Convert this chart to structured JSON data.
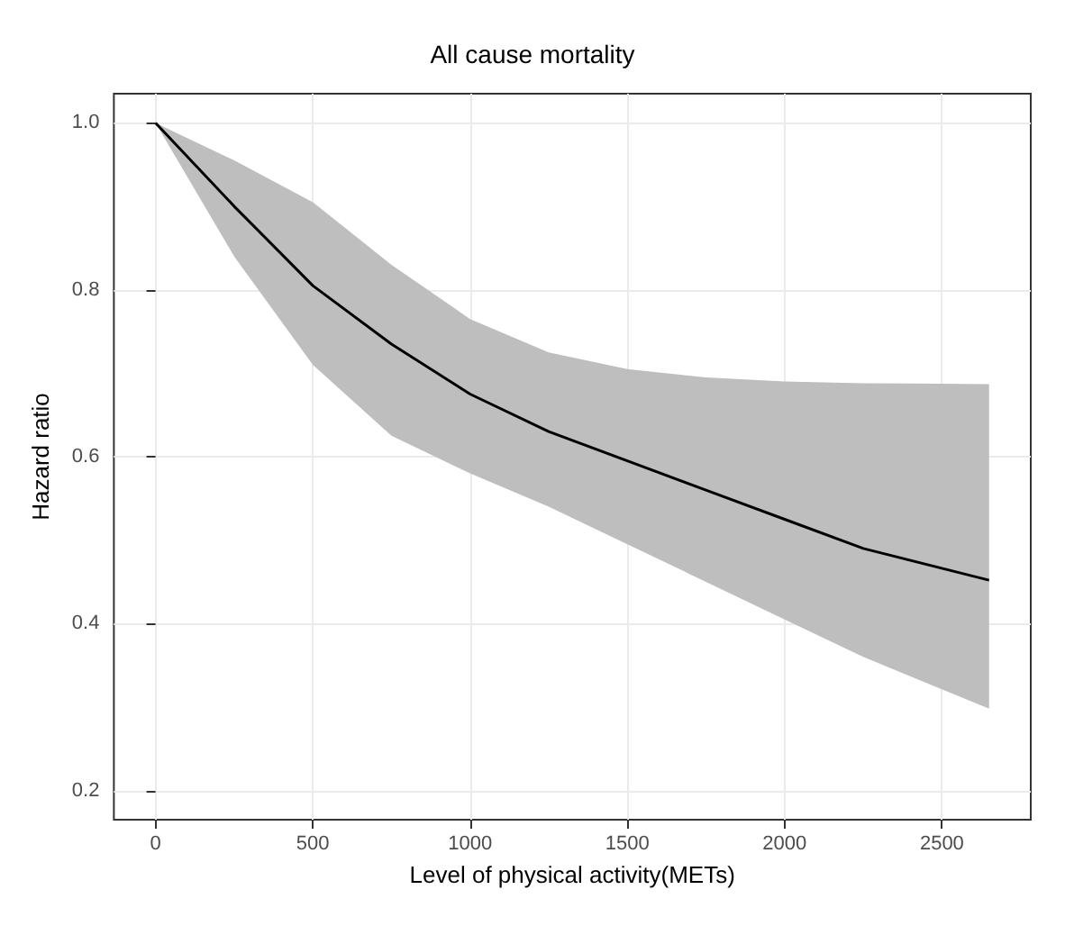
{
  "chart_data": {
    "type": "line",
    "title": "All cause mortality",
    "xlabel": "Level of physical activity(METs)",
    "ylabel": "Hazard ratio",
    "x": [
      0,
      250,
      500,
      750,
      1000,
      1250,
      1500,
      1750,
      2000,
      2250,
      2650
    ],
    "series": [
      {
        "color": "#000000",
        "values": [
          1.0,
          0.9,
          0.805,
          0.735,
          0.675,
          0.63,
          0.595,
          0.56,
          0.525,
          0.49,
          0.452
        ],
        "lower": [
          1.0,
          0.84,
          0.71,
          0.625,
          0.58,
          0.54,
          0.495,
          0.45,
          0.405,
          0.36,
          0.298
        ],
        "upper": [
          1.0,
          0.955,
          0.905,
          0.83,
          0.765,
          0.725,
          0.705,
          0.695,
          0.69,
          0.688,
          0.687
        ]
      }
    ],
    "xlim": [
      -132.5,
      2782.5
    ],
    "ylim": [
      0.165,
      1.035
    ],
    "xticks": [
      0,
      500,
      1000,
      1500,
      2000,
      2500
    ],
    "yticks": [
      0.2,
      0.4,
      0.6,
      0.8,
      {
        "value": 1,
        "label": "1.0"
      }
    ],
    "grid": true,
    "marker": "none",
    "line_style": "solid"
  }
}
